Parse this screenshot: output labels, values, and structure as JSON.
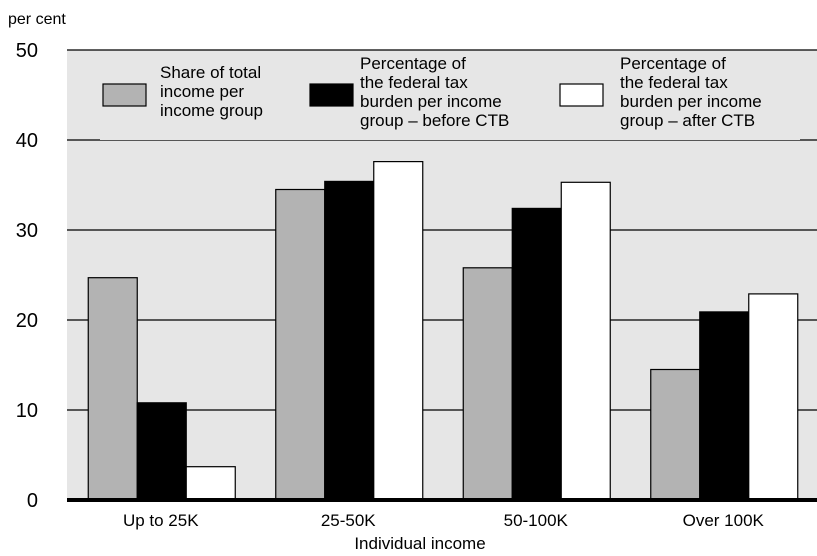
{
  "chart_data": {
    "type": "bar",
    "y_unit_label": "per cent",
    "xlabel": "Individual income",
    "ylabel": "",
    "title": "",
    "ylim": [
      0,
      50
    ],
    "yticks": [
      0,
      10,
      20,
      30,
      40,
      50
    ],
    "grid": true,
    "legend_position": "top",
    "categories": [
      "Up to 25K",
      "25-50K",
      "50-100K",
      "Over 100K"
    ],
    "series": [
      {
        "name": "Share of total income per income group",
        "legend_lines": [
          "Share of total",
          "income per",
          "income group"
        ],
        "color": "#b3b3b3",
        "values": [
          24.7,
          34.5,
          25.8,
          14.5
        ]
      },
      {
        "name": "Percentage of the federal tax burden per income group – before CTB",
        "legend_lines": [
          "Percentage of",
          "the federal tax",
          "burden per income",
          "group – before CTB"
        ],
        "color": "#000000",
        "values": [
          10.8,
          35.4,
          32.4,
          20.9
        ]
      },
      {
        "name": "Percentage of the federal tax burden per income group – after CTB",
        "legend_lines": [
          "Percentage of",
          "the federal tax",
          "burden per income",
          "group – after CTB"
        ],
        "color": "#ffffff",
        "values": [
          3.7,
          37.6,
          35.3,
          22.9
        ]
      }
    ]
  },
  "colors": {
    "plot_background": "#e6e6e6",
    "gridline": "#000000",
    "bar_stroke": "#000000"
  }
}
